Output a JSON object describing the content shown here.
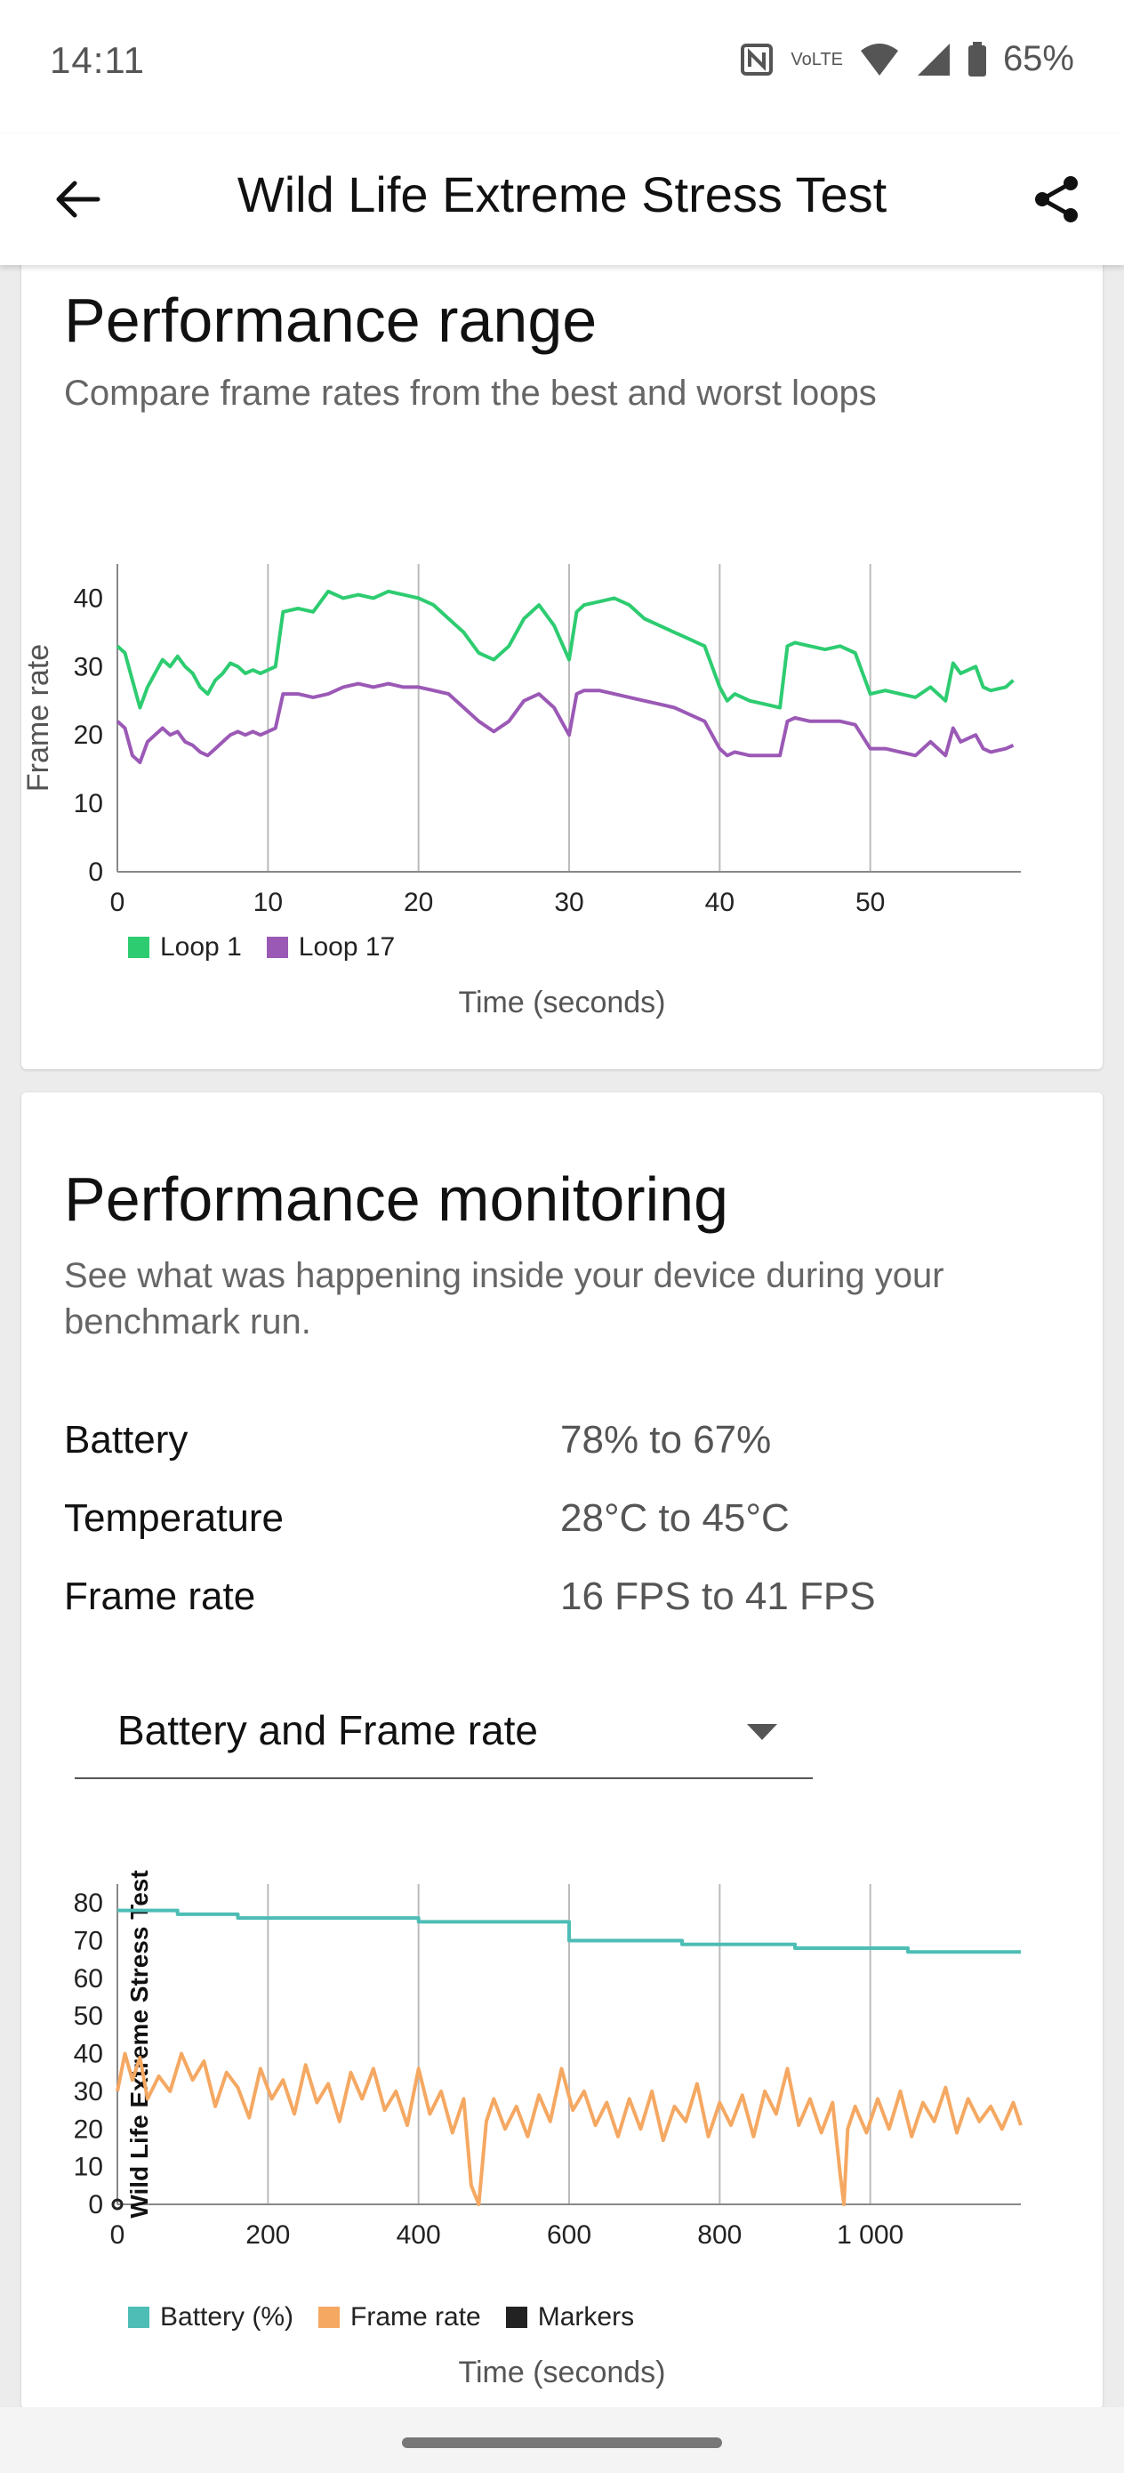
{
  "status": {
    "time": "14:11",
    "battery": "65%",
    "volte": "VoLTE"
  },
  "appbar": {
    "title": "Wild Life Extreme Stress Test"
  },
  "range": {
    "title": "Performance range",
    "subtitle": "Compare frame rates from the best and worst loops"
  },
  "monitoring": {
    "title": "Performance monitoring",
    "subtitle": "See what was happening inside your device during your benchmark run.",
    "stats": [
      {
        "label": "Battery",
        "value": "78% to 67%"
      },
      {
        "label": "Temperature",
        "value": "28°C to 45°C"
      },
      {
        "label": "Frame rate",
        "value": "16 FPS to 41 FPS"
      }
    ],
    "dropdown_value": "Battery and Frame rate"
  },
  "chart_data": [
    {
      "type": "line",
      "title": "",
      "xlabel": "Time (seconds)",
      "ylabel": "Frame rate",
      "xlim": [
        0,
        60
      ],
      "ylim": [
        0,
        45
      ],
      "xticks": [
        "0",
        "10",
        "20",
        "30",
        "40",
        "50"
      ],
      "yticks": [
        "0",
        "10",
        "20",
        "30",
        "40"
      ],
      "legend": "bottom-left",
      "series": [
        {
          "name": "Loop 1",
          "color": "#2ecc71",
          "x": [
            0,
            0.5,
            1,
            1.5,
            2,
            2.5,
            3,
            3.5,
            4,
            4.5,
            5,
            5.5,
            6,
            6.5,
            7,
            7.5,
            8,
            8.5,
            9,
            9.5,
            10,
            10.5,
            11,
            12,
            13,
            14,
            15,
            16,
            17,
            18,
            19,
            20,
            21,
            22,
            23,
            24,
            25,
            26,
            27,
            28,
            29,
            30,
            30.5,
            31,
            32,
            33,
            34,
            35,
            36,
            37,
            38,
            39,
            40,
            40.5,
            41,
            42,
            43,
            44,
            44.5,
            45,
            46,
            47,
            48,
            49,
            50,
            51,
            52,
            53,
            54,
            55,
            55.5,
            56,
            57,
            57.5,
            58,
            59,
            59.5
          ],
          "y": [
            33,
            32,
            28,
            24,
            27,
            29,
            31,
            30,
            31.5,
            30,
            29,
            27,
            26,
            28,
            29,
            30.5,
            30,
            29,
            29.5,
            29,
            29.5,
            30,
            38,
            38.5,
            38,
            41,
            40,
            40.5,
            40,
            41,
            40.5,
            40,
            39,
            37,
            35,
            32,
            31,
            33,
            37,
            39,
            36,
            31,
            38,
            39,
            39.5,
            40,
            39,
            37,
            36,
            35,
            34,
            33,
            27,
            25,
            26,
            25,
            24.5,
            24,
            33,
            33.5,
            33,
            32.5,
            33,
            32,
            26,
            26.5,
            26,
            25.5,
            27,
            25,
            30.5,
            29,
            30,
            27,
            26.5,
            27,
            28
          ]
        },
        {
          "name": "Loop 17",
          "color": "#9b59b6",
          "x": [
            0,
            0.5,
            1,
            1.5,
            2,
            2.5,
            3,
            3.5,
            4,
            4.5,
            5,
            5.5,
            6,
            6.5,
            7,
            7.5,
            8,
            8.5,
            9,
            9.5,
            10,
            10.5,
            11,
            12,
            13,
            14,
            15,
            16,
            17,
            18,
            19,
            20,
            21,
            22,
            23,
            24,
            25,
            26,
            27,
            28,
            29,
            30,
            30.5,
            31,
            32,
            33,
            34,
            35,
            36,
            37,
            38,
            39,
            40,
            40.5,
            41,
            42,
            43,
            44,
            44.5,
            45,
            46,
            47,
            48,
            49,
            50,
            51,
            52,
            53,
            54,
            55,
            55.5,
            56,
            57,
            57.5,
            58,
            59,
            59.5
          ],
          "y": [
            22,
            21,
            17,
            16,
            19,
            20,
            21,
            20,
            20.5,
            19,
            18.5,
            17.5,
            17,
            18,
            19,
            20,
            20.5,
            20,
            20.5,
            20,
            20.5,
            21,
            26,
            26,
            25.5,
            26,
            27,
            27.5,
            27,
            27.5,
            27,
            27,
            26.5,
            26,
            24,
            22,
            20.5,
            22,
            25,
            26,
            24,
            20,
            26,
            26.5,
            26.5,
            26,
            25.5,
            25,
            24.5,
            24,
            23,
            22,
            18,
            17,
            17.5,
            17,
            17,
            17,
            22,
            22.5,
            22,
            22,
            22,
            21.5,
            18,
            18,
            17.5,
            17,
            19,
            17,
            21,
            19,
            20,
            18,
            17.5,
            18,
            18.5
          ]
        }
      ]
    },
    {
      "type": "line",
      "title": "",
      "xlabel": "Time (seconds)",
      "ylabel": "Wild Life Extreme Stress Test",
      "xlim": [
        0,
        1200
      ],
      "ylim": [
        0,
        85
      ],
      "xticks": [
        "0",
        "200",
        "400",
        "600",
        "800",
        "1 000"
      ],
      "yticks": [
        "0",
        "10",
        "20",
        "30",
        "40",
        "50",
        "60",
        "70",
        "80"
      ],
      "legend": "bottom-left",
      "series": [
        {
          "name": "Battery (%)",
          "color": "#4dbdb5",
          "x": [
            0,
            80,
            80,
            160,
            160,
            400,
            400,
            600,
            600,
            750,
            750,
            900,
            900,
            1050,
            1050,
            1200
          ],
          "y": [
            78,
            78,
            77,
            77,
            76,
            76,
            75,
            75,
            70,
            70,
            69,
            69,
            68,
            68,
            67,
            67
          ]
        },
        {
          "name": "Frame rate",
          "color": "#f5a862",
          "x": [
            0,
            10,
            20,
            30,
            40,
            55,
            70,
            85,
            100,
            115,
            130,
            145,
            160,
            175,
            190,
            205,
            220,
            235,
            250,
            265,
            280,
            295,
            310,
            325,
            340,
            355,
            370,
            385,
            400,
            415,
            430,
            445,
            460,
            470,
            480,
            490,
            500,
            515,
            530,
            545,
            560,
            575,
            590,
            605,
            620,
            635,
            650,
            665,
            680,
            695,
            710,
            725,
            740,
            755,
            770,
            785,
            800,
            815,
            830,
            845,
            860,
            875,
            890,
            905,
            920,
            935,
            950,
            960,
            965,
            970,
            980,
            995,
            1010,
            1025,
            1040,
            1055,
            1070,
            1085,
            1100,
            1115,
            1130,
            1145,
            1160,
            1175,
            1190,
            1200
          ],
          "y": [
            30,
            40,
            33,
            39,
            28,
            34,
            30,
            40,
            33,
            38,
            26,
            35,
            31,
            23,
            36,
            28,
            33,
            24,
            37,
            27,
            32,
            22,
            35,
            28,
            36,
            25,
            30,
            21,
            36,
            24,
            30,
            19,
            28,
            5,
            0,
            22,
            28,
            20,
            26,
            18,
            29,
            22,
            36,
            25,
            30,
            21,
            27,
            18,
            28,
            20,
            30,
            17,
            26,
            22,
            32,
            18,
            27,
            21,
            29,
            18,
            30,
            24,
            36,
            21,
            28,
            19,
            27,
            8,
            0,
            20,
            26,
            19,
            28,
            20,
            30,
            18,
            27,
            22,
            31,
            19,
            28,
            22,
            26,
            20,
            27,
            21
          ]
        },
        {
          "name": "Markers",
          "color": "#222222",
          "x": [],
          "y": []
        }
      ]
    }
  ]
}
